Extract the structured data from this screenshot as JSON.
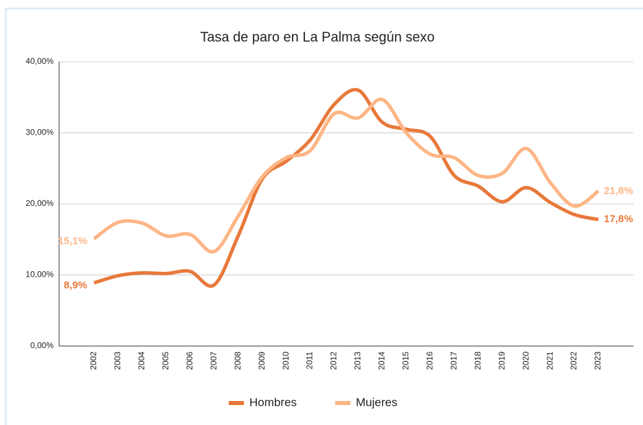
{
  "chart_data": {
    "type": "line",
    "title": "Tasa de paro en La Palma según sexo",
    "categories": [
      "2002",
      "2003",
      "2004",
      "2005",
      "2006",
      "2007",
      "2008",
      "2009",
      "2010",
      "2011",
      "2012",
      "2013",
      "2014",
      "2015",
      "2016",
      "2017",
      "2018",
      "2019",
      "2020",
      "2021",
      "2022",
      "2023"
    ],
    "series": [
      {
        "name": "Hombres",
        "color": "#e8793a",
        "values": [
          8.9,
          9.9,
          10.3,
          10.2,
          10.5,
          8.6,
          15.5,
          23.5,
          26,
          29,
          34,
          36,
          31.5,
          30.5,
          29.5,
          24,
          22.5,
          20.3,
          22.3,
          20.2,
          18.5,
          17.8
        ],
        "value_labels": [
          "8,9%",
          null,
          null,
          null,
          null,
          null,
          null,
          null,
          null,
          null,
          null,
          null,
          null,
          null,
          null,
          null,
          null,
          null,
          null,
          null,
          null,
          "17,8%"
        ]
      },
      {
        "name": "Mujeres",
        "color": "#fdb585",
        "values": [
          15.1,
          17.4,
          17.3,
          15.5,
          15.7,
          13.3,
          18.3,
          23.8,
          26.5,
          27.5,
          32.7,
          32.1,
          34.7,
          30,
          27,
          26.5,
          24,
          24.3,
          27.8,
          23,
          19.7,
          21.8
        ],
        "value_labels": [
          "15,1%",
          null,
          null,
          null,
          null,
          null,
          null,
          null,
          null,
          null,
          null,
          null,
          null,
          null,
          null,
          null,
          null,
          null,
          null,
          null,
          null,
          "21,8%"
        ]
      }
    ],
    "ylim": [
      0,
      40
    ],
    "yticks": [
      {
        "value": 0,
        "label": "0,00%"
      },
      {
        "value": 10,
        "label": "10,00%"
      },
      {
        "value": 20,
        "label": "20,00%"
      },
      {
        "value": 30,
        "label": "30,00%"
      },
      {
        "value": 40,
        "label": "40,00%"
      }
    ],
    "grid": true,
    "legend": "bottom"
  }
}
